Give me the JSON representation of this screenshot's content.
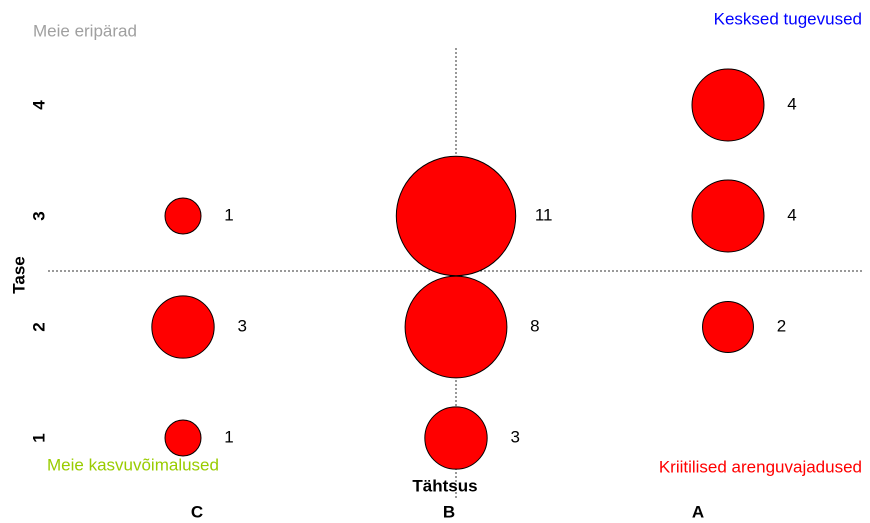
{
  "chart_data": {
    "type": "bubble",
    "categories": [
      "C",
      "B",
      "A"
    ],
    "xlabel": "Tähtsus",
    "ylabel": "Tase",
    "ylim": [
      0.5,
      4.5
    ],
    "yticks": [
      1,
      2,
      3,
      4
    ],
    "color": "#ff0000",
    "points": [
      {
        "x": "C",
        "y": 3,
        "size": 1
      },
      {
        "x": "C",
        "y": 2,
        "size": 3
      },
      {
        "x": "C",
        "y": 1,
        "size": 1
      },
      {
        "x": "B",
        "y": 3,
        "size": 11
      },
      {
        "x": "B",
        "y": 2,
        "size": 8
      },
      {
        "x": "B",
        "y": 1,
        "size": 3
      },
      {
        "x": "A",
        "y": 4,
        "size": 4
      },
      {
        "x": "A",
        "y": 3,
        "size": 4
      },
      {
        "x": "A",
        "y": 2,
        "size": 2
      }
    ],
    "annotations": [
      {
        "text": "Meie eripärad",
        "color": "#a0a0a0"
      },
      {
        "text": "Kesksed tugevused",
        "color": "#0000ff"
      },
      {
        "text": "Meie kasvuvõimalused",
        "color": "#99cc00"
      },
      {
        "text": "Kriitilised arenguvajadused",
        "color": "#ff0000"
      }
    ]
  }
}
